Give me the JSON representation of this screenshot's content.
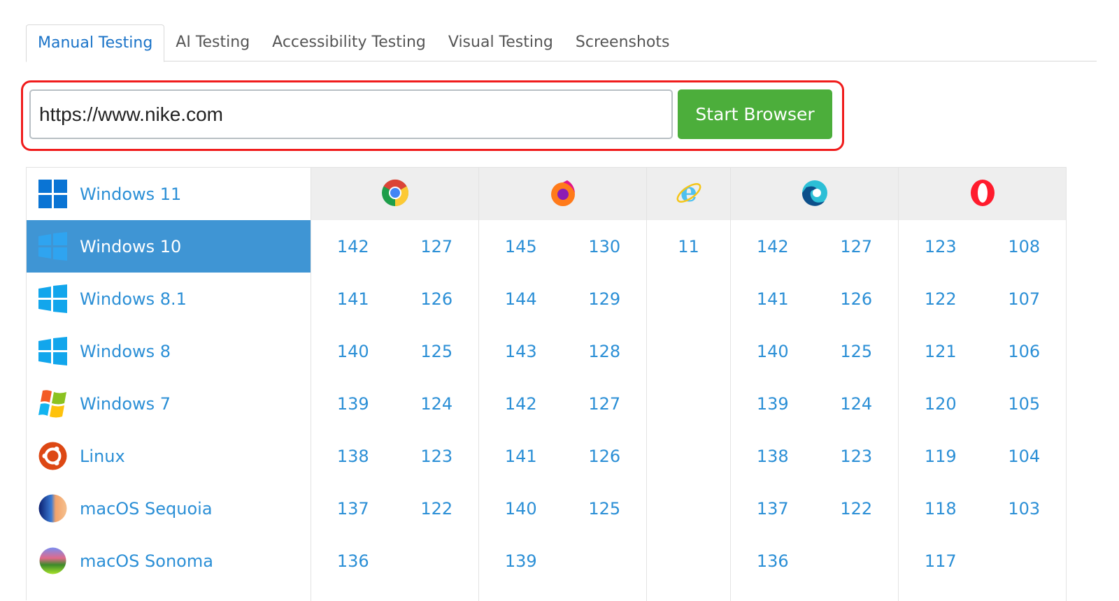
{
  "tabs": [
    "Manual Testing",
    "AI Testing",
    "Accessibility Testing",
    "Visual Testing",
    "Screenshots"
  ],
  "active_tab": "Manual Testing",
  "url_input": {
    "value": "https://www.nike.com"
  },
  "start_button": "Start Browser",
  "colors": {
    "accent": "#2b8fd6",
    "selected": "#3f95d4",
    "start": "#4cae3b",
    "highlight": "#f01c1c"
  },
  "os_list": [
    {
      "label": "Windows 11",
      "icon": "windows-11-icon"
    },
    {
      "label": "Windows 10",
      "icon": "windows-10-icon",
      "selected": true
    },
    {
      "label": "Windows 8.1",
      "icon": "windows-8-icon"
    },
    {
      "label": "Windows 8",
      "icon": "windows-8-icon"
    },
    {
      "label": "Windows 7",
      "icon": "windows-7-icon"
    },
    {
      "label": "Linux",
      "icon": "ubuntu-icon"
    },
    {
      "label": "macOS Sequoia",
      "icon": "macos-sequoia-icon"
    },
    {
      "label": "macOS Sonoma",
      "icon": "macos-sonoma-icon"
    }
  ],
  "browsers": [
    {
      "name": "chrome",
      "icon": "chrome-icon",
      "versions": [
        [
          "142",
          "127"
        ],
        [
          "141",
          "126"
        ],
        [
          "140",
          "125"
        ],
        [
          "139",
          "124"
        ],
        [
          "138",
          "123"
        ],
        [
          "137",
          "122"
        ],
        [
          "136",
          ""
        ]
      ]
    },
    {
      "name": "firefox",
      "icon": "firefox-icon",
      "versions": [
        [
          "145",
          "130"
        ],
        [
          "144",
          "129"
        ],
        [
          "143",
          "128"
        ],
        [
          "142",
          "127"
        ],
        [
          "141",
          "126"
        ],
        [
          "140",
          "125"
        ],
        [
          "139",
          ""
        ]
      ]
    },
    {
      "name": "ie",
      "icon": "internet-explorer-icon",
      "versions": [
        [
          "11"
        ],
        [
          ""
        ],
        [
          ""
        ],
        [
          ""
        ],
        [
          ""
        ],
        [
          ""
        ],
        [
          ""
        ]
      ]
    },
    {
      "name": "edge",
      "icon": "edge-icon",
      "versions": [
        [
          "142",
          "127"
        ],
        [
          "141",
          "126"
        ],
        [
          "140",
          "125"
        ],
        [
          "139",
          "124"
        ],
        [
          "138",
          "123"
        ],
        [
          "137",
          "122"
        ],
        [
          "136",
          ""
        ]
      ]
    },
    {
      "name": "opera",
      "icon": "opera-icon",
      "versions": [
        [
          "123",
          "108"
        ],
        [
          "122",
          "107"
        ],
        [
          "121",
          "106"
        ],
        [
          "120",
          "105"
        ],
        [
          "119",
          "104"
        ],
        [
          "118",
          "103"
        ],
        [
          "117",
          ""
        ]
      ]
    }
  ]
}
